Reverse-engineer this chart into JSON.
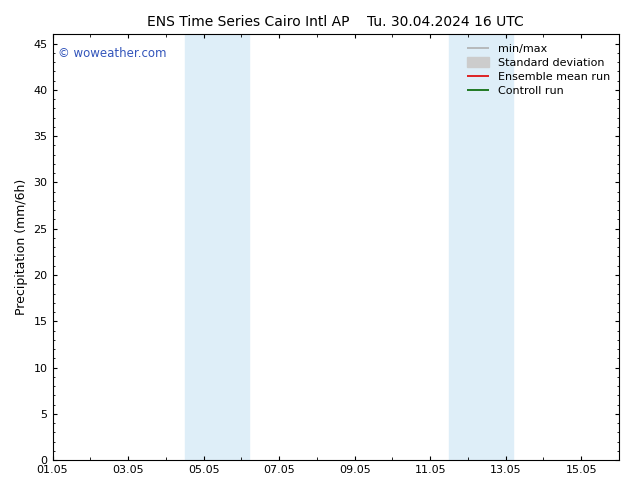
{
  "title_left": "ENS Time Series Cairo Intl AP",
  "title_right": "Tu. 30.04.2024 16 UTC",
  "ylabel": "Precipitation (mm/6h)",
  "ylim": [
    0,
    46
  ],
  "yticks": [
    0,
    5,
    10,
    15,
    20,
    25,
    30,
    35,
    40,
    45
  ],
  "xlim": [
    0,
    15
  ],
  "xtick_labels": [
    "01.05",
    "03.05",
    "05.05",
    "07.05",
    "09.05",
    "11.05",
    "13.05",
    "15.05"
  ],
  "xtick_positions": [
    0,
    2,
    4,
    6,
    8,
    10,
    12,
    14
  ],
  "shade_bands": [
    {
      "xmin": 3.5,
      "xmax": 5.2,
      "color": "#deeef8"
    },
    {
      "xmin": 10.5,
      "xmax": 12.2,
      "color": "#deeef8"
    }
  ],
  "legend_entries": [
    {
      "label": "min/max",
      "color": "#b0b0b0",
      "lw": 1.2,
      "type": "line"
    },
    {
      "label": "Standard deviation",
      "color": "#cccccc",
      "lw": 5,
      "type": "line"
    },
    {
      "label": "Ensemble mean run",
      "color": "#dd0000",
      "lw": 1.2,
      "type": "line"
    },
    {
      "label": "Controll run",
      "color": "#006600",
      "lw": 1.2,
      "type": "line"
    }
  ],
  "watermark": "© woweather.com",
  "watermark_color": "#3355bb",
  "bg_color": "#ffffff",
  "plot_bg_color": "#ffffff",
  "title_fontsize": 10,
  "tick_fontsize": 8,
  "ylabel_fontsize": 9,
  "legend_fontsize": 8
}
